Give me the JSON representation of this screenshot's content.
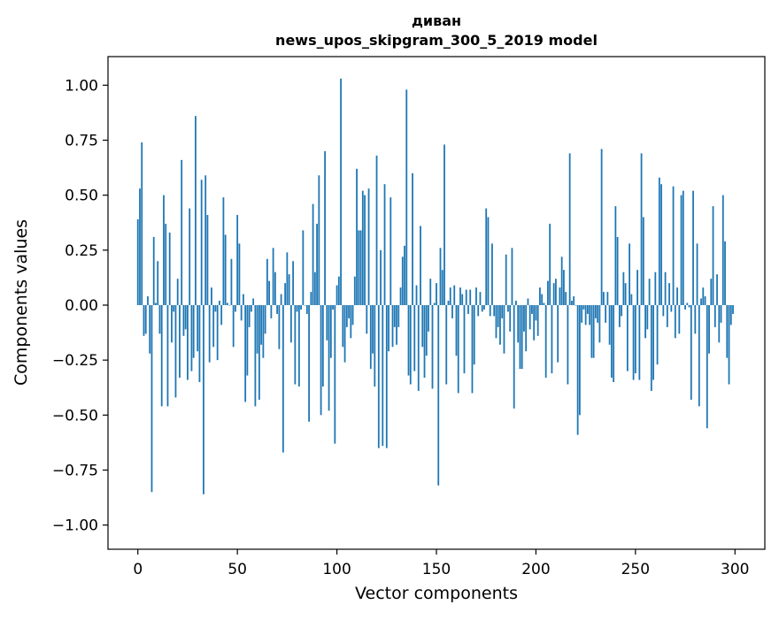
{
  "chart_data": {
    "type": "bar",
    "title": "диван",
    "subtitle": "news_upos_skipgram_300_5_2019 model",
    "xlabel": "Vector components",
    "ylabel": "Components values",
    "xlim": [
      -15,
      315
    ],
    "ylim": [
      -1.11,
      1.13
    ],
    "xticks": [
      0,
      50,
      100,
      150,
      200,
      250,
      300
    ],
    "xtick_labels": [
      "0",
      "50",
      "100",
      "150",
      "200",
      "250",
      "300"
    ],
    "yticks": [
      -1.0,
      -0.75,
      -0.5,
      -0.25,
      0.0,
      0.25,
      0.5,
      0.75,
      1.0
    ],
    "ytick_labels": [
      "−1.00",
      "−0.75",
      "−0.50",
      "−0.25",
      "0.00",
      "0.25",
      "0.50",
      "0.75",
      "1.00"
    ],
    "grid": false,
    "bar_color": "#1f77b4",
    "values": [
      0.39,
      0.53,
      0.74,
      -0.14,
      -0.13,
      0.04,
      -0.22,
      -0.85,
      0.31,
      0.01,
      0.2,
      -0.13,
      -0.46,
      0.5,
      0.37,
      -0.46,
      0.33,
      -0.17,
      -0.03,
      -0.42,
      0.12,
      -0.33,
      0.66,
      -0.14,
      -0.11,
      -0.34,
      0.44,
      -0.3,
      -0.24,
      0.86,
      -0.21,
      -0.35,
      0.57,
      -0.86,
      0.59,
      0.41,
      -0.26,
      0.08,
      -0.19,
      -0.03,
      -0.25,
      0.02,
      -0.09,
      0.49,
      0.32,
      0.01,
      0.0,
      0.21,
      -0.19,
      -0.03,
      0.41,
      0.28,
      -0.07,
      0.05,
      -0.44,
      -0.32,
      -0.1,
      -0.03,
      0.03,
      -0.46,
      -0.22,
      -0.43,
      -0.18,
      -0.24,
      -0.13,
      0.21,
      0.11,
      -0.06,
      0.26,
      0.15,
      -0.04,
      -0.2,
      0.05,
      -0.67,
      0.1,
      0.24,
      0.14,
      -0.17,
      0.2,
      -0.36,
      -0.03,
      -0.37,
      -0.02,
      0.34,
      0.0,
      -0.04,
      -0.53,
      0.06,
      0.46,
      0.15,
      0.37,
      0.59,
      -0.5,
      -0.37,
      0.7,
      -0.16,
      -0.48,
      -0.24,
      -0.02,
      -0.63,
      0.09,
      0.13,
      1.03,
      -0.19,
      -0.26,
      -0.1,
      -0.06,
      -0.15,
      -0.09,
      0.13,
      0.62,
      0.34,
      0.34,
      0.52,
      0.5,
      -0.13,
      0.53,
      -0.29,
      -0.22,
      -0.37,
      0.68,
      -0.65,
      0.25,
      -0.64,
      0.55,
      -0.65,
      -0.21,
      0.49,
      -0.19,
      -0.1,
      -0.18,
      -0.1,
      0.08,
      0.22,
      0.27,
      0.98,
      -0.32,
      -0.36,
      0.6,
      -0.3,
      0.09,
      -0.39,
      0.36,
      -0.19,
      -0.33,
      -0.23,
      -0.12,
      0.12,
      -0.38,
      0.01,
      0.1,
      -0.82,
      0.26,
      0.16,
      0.73,
      -0.36,
      0.02,
      0.08,
      -0.06,
      0.09,
      -0.23,
      -0.4,
      0.08,
      0.05,
      -0.31,
      0.07,
      -0.04,
      0.07,
      -0.4,
      -0.27,
      0.08,
      -0.05,
      0.06,
      -0.03,
      -0.02,
      0.44,
      0.4,
      -0.05,
      0.28,
      -0.05,
      -0.15,
      -0.1,
      -0.18,
      -0.06,
      -0.22,
      0.23,
      -0.03,
      -0.12,
      0.26,
      -0.47,
      0.02,
      -0.17,
      -0.29,
      -0.29,
      -0.12,
      -0.21,
      0.03,
      -0.11,
      -0.04,
      -0.16,
      -0.07,
      -0.14,
      0.08,
      0.05,
      0.01,
      -0.33,
      0.11,
      0.37,
      -0.31,
      0.1,
      0.12,
      -0.26,
      0.08,
      0.22,
      0.16,
      0.06,
      -0.36,
      0.69,
      0.02,
      0.04,
      0.0,
      -0.59,
      -0.5,
      -0.08,
      -0.02,
      -0.09,
      -0.04,
      -0.09,
      -0.24,
      -0.24,
      -0.06,
      -0.08,
      -0.17,
      0.71,
      0.06,
      -0.08,
      0.06,
      -0.18,
      -0.33,
      -0.35,
      0.45,
      0.31,
      -0.1,
      -0.05,
      0.15,
      0.1,
      -0.3,
      0.28,
      0.05,
      -0.34,
      -0.31,
      0.16,
      -0.34,
      0.69,
      0.4,
      -0.15,
      -0.11,
      0.12,
      -0.39,
      -0.34,
      0.15,
      -0.27,
      0.58,
      0.55,
      -0.05,
      0.15,
      -0.1,
      0.1,
      -0.03,
      0.54,
      -0.15,
      0.08,
      -0.13,
      0.5,
      0.52,
      -0.02,
      0.01,
      -0.01,
      -0.43,
      0.52,
      -0.13,
      0.28,
      -0.46,
      0.03,
      0.08,
      0.04,
      -0.56,
      -0.22,
      0.12,
      0.45,
      -0.1,
      0.14,
      -0.17,
      -0.08,
      0.5,
      0.29,
      -0.24,
      -0.36,
      -0.09,
      -0.04
    ]
  }
}
